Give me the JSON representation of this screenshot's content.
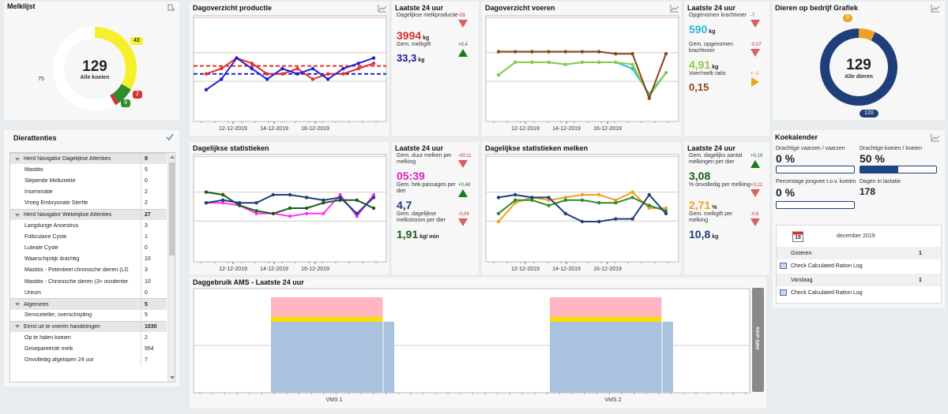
{
  "colors": {
    "yellow": "#f5f02a",
    "green": "#2e8b2e",
    "red": "#d93030",
    "navy": "#1f3f7a",
    "orange": "#f0a020",
    "pink": "#ff33ff",
    "cyan": "#22bbd8",
    "lime": "#88cc44",
    "brown": "#8b4513",
    "darkgreen": "#1a5c1a",
    "magenta": "#e020c0"
  },
  "milk": {
    "title": "Melklijst",
    "center_value": "129",
    "center_label": "Alle koeien",
    "count_yellow": "43",
    "count_green": "9",
    "count_red": "2",
    "count_left": "75",
    "segments": [
      43,
      9,
      2,
      75
    ]
  },
  "production": {
    "title": "Dagoverzicht productie",
    "ticks": [
      "12-12-2019",
      "14-12-2019",
      "16-12-2019"
    ],
    "line_red": [
      79,
      80,
      82,
      81,
      79,
      79,
      80,
      78,
      79,
      79,
      80,
      81
    ],
    "line_blue": [
      76,
      78,
      82,
      80,
      78,
      80,
      79,
      80,
      78,
      80,
      81,
      82
    ],
    "ref_red": 80.5,
    "ref_blue": 79,
    "ylim": [
      70,
      90
    ]
  },
  "prod_stats": {
    "header": "Laatste 24 uur",
    "items": [
      {
        "label": "Dagelijkse melkproductie",
        "value": "3994",
        "unit": "kg",
        "delta": "-59",
        "dir": "down",
        "color": "#d93030"
      },
      {
        "label": "Gem. melkgift",
        "value": "33,3",
        "unit": "kg",
        "delta": "+0,4",
        "dir": "up",
        "color": "#1a1aa0"
      }
    ]
  },
  "feed": {
    "title": "Dagoverzicht voeren",
    "ticks": [
      "12-12-2019",
      "14-12-2019",
      "16-12-2019"
    ],
    "series_brown": [
      6.3,
      6.3,
      6.3,
      6.3,
      6.3,
      6.3,
      6.3,
      6.2,
      6.2,
      4.1,
      6.2
    ],
    "series_lime": [
      5.2,
      5.8,
      5.8,
      5.8,
      5.7,
      5.8,
      5.8,
      5.8,
      5.7,
      4.2,
      5.3
    ],
    "series_cyan": [
      5.2,
      5.8,
      5.8,
      5.8,
      5.7,
      5.8,
      5.8,
      5.8,
      5.5,
      4.3,
      5.3
    ],
    "ylim": [
      3,
      8
    ]
  },
  "feed_stats": {
    "header": "Laatste 24 uur",
    "items": [
      {
        "label": "Opgenomen krachtvoer",
        "value": "590",
        "unit": "kg",
        "delta": "-7",
        "dir": "down",
        "color": "#22bbd8"
      },
      {
        "label": "Gem. opgenomen krachtvoer",
        "value": "4,91",
        "unit": "kg",
        "delta": "-0,07",
        "dir": "down",
        "color": "#88cc44"
      },
      {
        "label": "Voer/melk ratio",
        "value": "0,15",
        "unit": "",
        "delta": "+- 0",
        "dir": "right",
        "color": "#8b4513"
      }
    ]
  },
  "animals": {
    "title": "Dieren op bedrijf  Grafiek",
    "center_value": "129",
    "center_label": "Alle dieren",
    "count_orange": "9",
    "count_navy": "120",
    "segments": [
      9,
      120
    ]
  },
  "attentions": {
    "title": "Dierattenties",
    "rows": [
      {
        "type": "grp",
        "label": "Herd Navigator Dagelijkse Attenties",
        "value": "9"
      },
      {
        "type": "item",
        "label": "Mastitis",
        "value": "5"
      },
      {
        "type": "item",
        "label": "Slepende Melkziekte",
        "value": "0"
      },
      {
        "type": "item",
        "label": "Inseminatie",
        "value": "2"
      },
      {
        "type": "item",
        "label": "Vroeg Embryonale Sterfte",
        "value": "2"
      },
      {
        "type": "grp",
        "label": "Herd Navigator Wekelijkse Attenties",
        "value": "27"
      },
      {
        "type": "item",
        "label": "Langdurige Anoestrus",
        "value": "3"
      },
      {
        "type": "item",
        "label": "Folliculaire Cyste",
        "value": "1"
      },
      {
        "type": "item",
        "label": "Luteale Cyste",
        "value": "0"
      },
      {
        "type": "item",
        "label": "Waarschijnlijk drachtig",
        "value": "10"
      },
      {
        "type": "item",
        "label": "Mastitis - Potentieel chronische dieren (LD",
        "value": "3"
      },
      {
        "type": "item",
        "label": "Mastitis - Chronische dieren (3+ incidenter",
        "value": "10"
      },
      {
        "type": "item",
        "label": "Ureum",
        "value": "0"
      },
      {
        "type": "grp",
        "label": "Algemeen",
        "value": "5"
      },
      {
        "type": "item",
        "label": "Serviceteller, overschrijding",
        "value": "5"
      },
      {
        "type": "grp",
        "label": "Eerst uit te voeren handelingen",
        "value": "1030"
      },
      {
        "type": "item",
        "label": "Op te halen koeien",
        "value": "2"
      },
      {
        "type": "item",
        "label": "Gesepareerde melk",
        "value": "954"
      },
      {
        "type": "item",
        "label": "Onvolledig afgelopen 24 uur",
        "value": "7"
      }
    ]
  },
  "daily_stats": {
    "title": "Dagelijkse statistieken",
    "ticks": [
      "12-12-2019",
      "14-12-2019",
      "16-12-2019"
    ],
    "series_pink": [
      6.2,
      6.2,
      6.1,
      5.8,
      5.8,
      5.7,
      5.8,
      5.8,
      6.5,
      5.7,
      6.5
    ],
    "series_navy": [
      6.2,
      6.3,
      6.2,
      6.2,
      6.5,
      6.5,
      6.4,
      6.3,
      6.4,
      5.8,
      6.4
    ],
    "series_green": [
      6.6,
      6.5,
      6.1,
      5.9,
      5.8,
      6.0,
      6.0,
      6.2,
      6.3,
      6.3,
      6.0
    ],
    "ylim": [
      4,
      8
    ]
  },
  "daily_right": {
    "header": "Laatste 24 uur",
    "items": [
      {
        "label": "Gem. duur melken per melking",
        "value": "05:39",
        "unit": "",
        "delta": "-00:11",
        "dir": "down",
        "color": "#e020c0"
      },
      {
        "label": "Gem. hek-passages per dier",
        "value": "4,7",
        "unit": "",
        "delta": "+0,48",
        "dir": "up",
        "color": "#1f3f7a"
      },
      {
        "label": "Gem. dagelijkse melkstroom per dier",
        "value": "1,91",
        "unit": "kg/ min",
        "delta": "-0,04",
        "dir": "down",
        "color": "#1a5c1a"
      }
    ]
  },
  "milking_stats": {
    "title": "Dagelijkse statistieken melken",
    "ticks": [
      "12-12-2019",
      "14-12-2019",
      "16-12-2019"
    ],
    "series_orange": [
      5.5,
      6.2,
      6.4,
      6.3,
      6.4,
      6.5,
      6.5,
      6.3,
      6.6,
      6.0,
      6.0
    ],
    "series_green": [
      5.8,
      6.3,
      6.3,
      6.1,
      6.3,
      6.3,
      6.2,
      6.2,
      6.4,
      6.1,
      5.9
    ],
    "series_navy": [
      6.4,
      6.5,
      6.4,
      6.4,
      5.8,
      5.5,
      5.5,
      5.6,
      5.6,
      6.5,
      5.8
    ],
    "ylim": [
      4,
      8
    ]
  },
  "milking_right": {
    "header": "Laatste 24 uur",
    "items": [
      {
        "label": "Gem. dagelijks aantal melkingen per dier",
        "value": "3,08",
        "unit": "",
        "delta": "+0,19",
        "dir": "up",
        "color": "#1a5c1a"
      },
      {
        "label": "% onvolledig per melking",
        "value": "2,71",
        "unit": "%",
        "delta": "+0,22",
        "dir": "down",
        "color": "#f0a020"
      },
      {
        "label": "Gem. melkgift per melking",
        "value": "10,8",
        "unit": "kg",
        "delta": "-0,6",
        "dir": "down",
        "color": "#1f3f7a"
      }
    ]
  },
  "koe": {
    "title": "Koekalender",
    "stats": [
      {
        "label": "Drachtige vaarzen / vaarzen",
        "value": "0 %",
        "fill": 0
      },
      {
        "label": "Drachtige koeien / koeien",
        "value": "50 %",
        "fill": 0.5
      },
      {
        "label": "Percentage jongvee t.o.v. koeien",
        "value": "0 %",
        "fill": 0
      },
      {
        "label": "Dagen in lactatie",
        "value": "178"
      }
    ],
    "calendar": {
      "day": "18",
      "month": "december 2019",
      "rows": [
        {
          "label": "Gisteren",
          "value": "1",
          "grey": true
        },
        {
          "label": "Check Calculated Ration Log",
          "value": "",
          "icon": true
        },
        {
          "label": "Vandaag",
          "value": "1",
          "grey": true
        },
        {
          "label": "Check Calculated Ration Log",
          "value": "",
          "icon": true
        }
      ]
    }
  },
  "ams": {
    "title": "Daggebruik AMS - Laatste 24 uur",
    "side_label": "AMS units",
    "categories": [
      "VMS 1",
      "VMS 2"
    ]
  }
}
